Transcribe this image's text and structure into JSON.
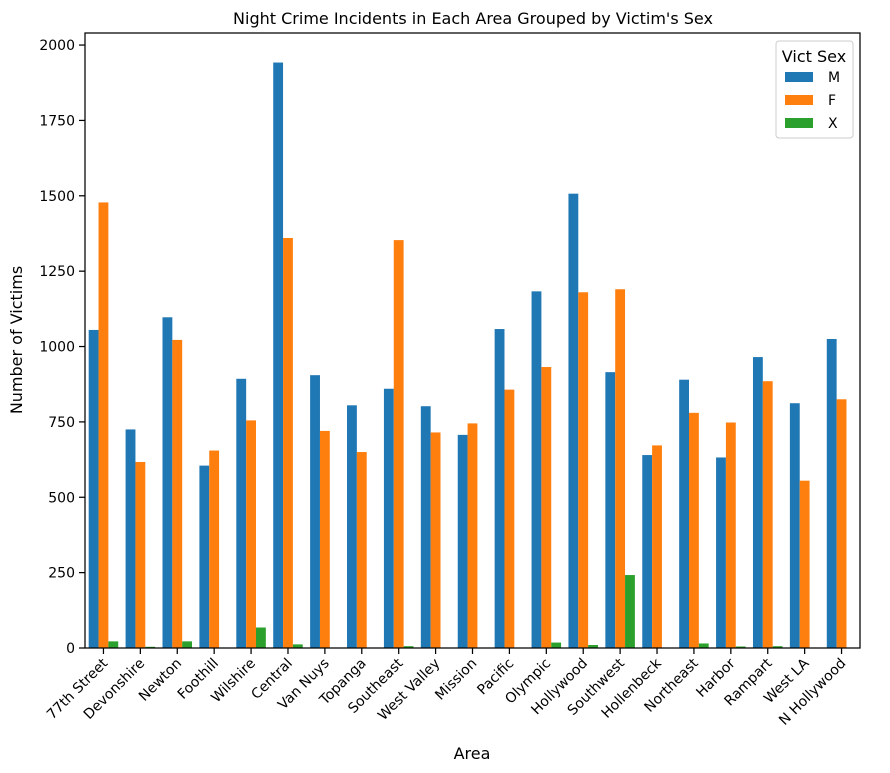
{
  "chart_data": {
    "type": "bar",
    "title": "Night Crime Incidents in Each Area Grouped by Victim's Sex",
    "xlabel": "Area",
    "ylabel": "Number of Victims",
    "ylim": [
      0,
      2040
    ],
    "yticks": [
      0,
      250,
      500,
      750,
      1000,
      1250,
      1500,
      1750,
      2000
    ],
    "grid": false,
    "legend": {
      "title": "Vict Sex",
      "placement": "top-right"
    },
    "categories": [
      "77th Street",
      "Devonshire",
      "Newton",
      "Foothill",
      "Wilshire",
      "Central",
      "Van Nuys",
      "Topanga",
      "Southeast",
      "West Valley",
      "Mission",
      "Pacific",
      "Olympic",
      "Hollywood",
      "Southwest",
      "Hollenbeck",
      "Northeast",
      "Harbor",
      "Rampart",
      "West LA",
      "N Hollywood"
    ],
    "series": [
      {
        "name": "M",
        "color": "#1f77b4",
        "values": [
          1055,
          725,
          1097,
          605,
          893,
          1942,
          905,
          805,
          860,
          802,
          707,
          1058,
          1183,
          1507,
          915,
          640,
          890,
          632,
          965,
          812,
          1025
        ]
      },
      {
        "name": "F",
        "color": "#ff7f0e",
        "values": [
          1478,
          617,
          1022,
          655,
          755,
          1360,
          720,
          650,
          1353,
          715,
          745,
          857,
          932,
          1180,
          1190,
          672,
          780,
          748,
          885,
          555,
          825
        ]
      },
      {
        "name": "X",
        "color": "#2ca02c",
        "values": [
          22,
          4,
          22,
          0,
          68,
          12,
          0,
          0,
          6,
          0,
          0,
          0,
          18,
          10,
          242,
          0,
          15,
          5,
          6,
          0,
          0
        ]
      }
    ]
  }
}
